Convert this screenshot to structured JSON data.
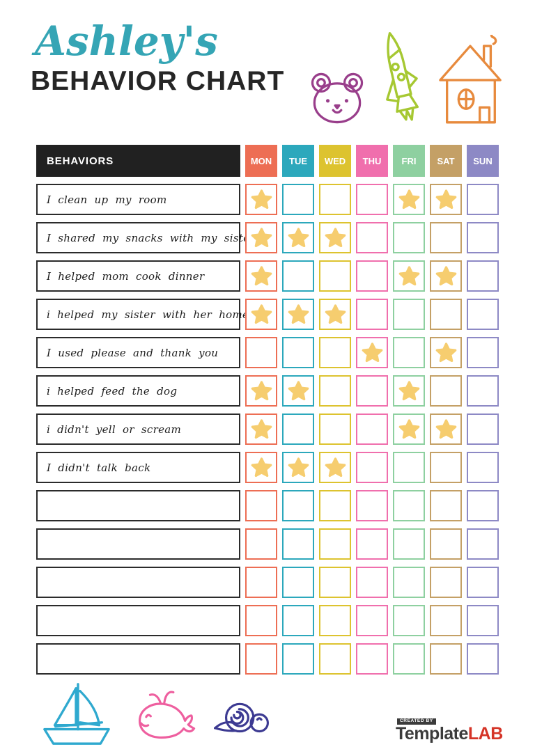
{
  "header": {
    "title_script": "Ashley's",
    "title_main": "BEHAVIOR CHART"
  },
  "colors": {
    "accent_teal": "#35a5b5",
    "title_dark": "#262626",
    "table_header_bg": "#212121",
    "row_border": "#2b2b2b",
    "star": "#f6cd6f",
    "logo_dark": "#3b3b3b",
    "logo_red": "#d53427",
    "doodle_bear": "#993e8b",
    "doodle_rocket": "#a6c832",
    "doodle_house": "#e78a3d",
    "doodle_boat": "#2fa9cf",
    "doodle_whale": "#ee5f9f",
    "doodle_snail": "#3c3a92"
  },
  "icons": {
    "top_right": [
      "bear-doodle-icon",
      "rocket-doodle-icon",
      "house-doodle-icon"
    ],
    "bottom_left": [
      "sailboat-doodle-icon",
      "whale-doodle-icon",
      "snail-doodle-icon"
    ],
    "cell_marker": "star-icon"
  },
  "table": {
    "header_label": "BEHAVIORS",
    "days": [
      {
        "label": "MON",
        "color": "#ed6e54"
      },
      {
        "label": "TUE",
        "color": "#2ca8bc"
      },
      {
        "label": "WED",
        "color": "#ddc32f"
      },
      {
        "label": "THU",
        "color": "#f06fad"
      },
      {
        "label": "FRI",
        "color": "#8ed0a0"
      },
      {
        "label": "SAT",
        "color": "#c4a066"
      },
      {
        "label": "SUN",
        "color": "#8d89c5"
      }
    ],
    "rows": [
      {
        "label": "I clean up my room",
        "stars": [
          1,
          0,
          0,
          0,
          1,
          1,
          0
        ]
      },
      {
        "label": "I shared my snacks with my sister",
        "stars": [
          1,
          1,
          1,
          0,
          0,
          0,
          0
        ]
      },
      {
        "label": "I helped mom cook dinner",
        "stars": [
          1,
          0,
          0,
          0,
          1,
          1,
          0
        ]
      },
      {
        "label": "i helped my sister with her homework",
        "stars": [
          1,
          1,
          1,
          0,
          0,
          0,
          0
        ]
      },
      {
        "label": "I used please and thank you",
        "stars": [
          0,
          0,
          0,
          1,
          0,
          1,
          0
        ]
      },
      {
        "label": "i helped feed the dog",
        "stars": [
          1,
          1,
          0,
          0,
          1,
          0,
          0
        ]
      },
      {
        "label": "i didn't yell or scream",
        "stars": [
          1,
          0,
          0,
          0,
          1,
          1,
          0
        ]
      },
      {
        "label": "I didn't talk back",
        "stars": [
          1,
          1,
          1,
          0,
          0,
          0,
          0
        ]
      },
      {
        "label": "",
        "stars": [
          0,
          0,
          0,
          0,
          0,
          0,
          0
        ]
      },
      {
        "label": "",
        "stars": [
          0,
          0,
          0,
          0,
          0,
          0,
          0
        ]
      },
      {
        "label": "",
        "stars": [
          0,
          0,
          0,
          0,
          0,
          0,
          0
        ]
      },
      {
        "label": "",
        "stars": [
          0,
          0,
          0,
          0,
          0,
          0,
          0
        ]
      },
      {
        "label": "",
        "stars": [
          0,
          0,
          0,
          0,
          0,
          0,
          0
        ]
      }
    ]
  },
  "logo": {
    "created_by": "CREATED BY",
    "brand_dark": "Template",
    "brand_red": "LAB"
  }
}
